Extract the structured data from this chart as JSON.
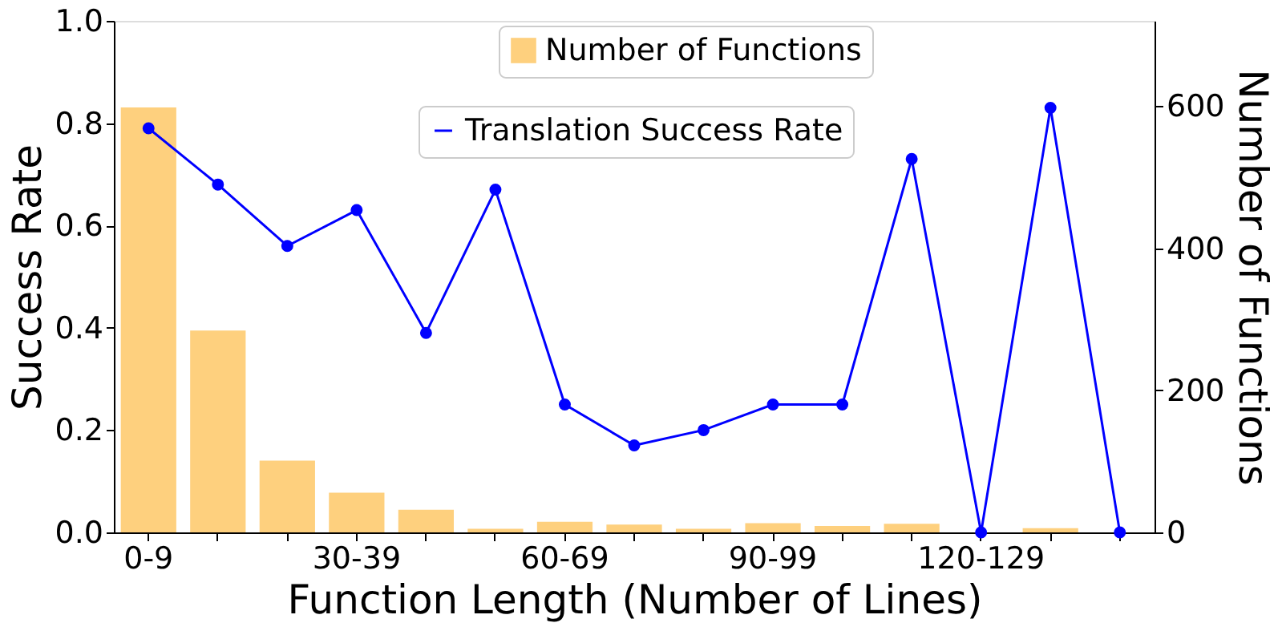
{
  "chart_data": {
    "type": "bar",
    "xlabel": "Function Length (Number of Lines)",
    "ylabel": "Success Rate",
    "y2label": "Number of Functions",
    "categories": [
      "0-9",
      null,
      null,
      "30-39",
      null,
      null,
      "60-69",
      null,
      null,
      "90-99",
      null,
      null,
      "120-129",
      null,
      null
    ],
    "series": [
      {
        "name": "Number of Functions",
        "axis": "y2",
        "color": "#fed07e",
        "values": [
          598,
          284,
          101,
          56,
          32,
          5,
          15,
          11,
          5,
          13,
          9,
          12,
          null,
          6,
          null
        ]
      },
      {
        "name": "Translation Success Rate",
        "type": "line",
        "color": "#0000ff",
        "marker": "circle",
        "values": [
          0.79,
          0.68,
          0.56,
          0.63,
          0.39,
          0.67,
          0.25,
          0.17,
          0.2,
          0.25,
          0.25,
          0.73,
          0.0,
          0.83,
          0.0
        ]
      }
    ],
    "ylim": [
      0,
      1
    ],
    "yticks": [
      {
        "value": 0,
        "label": "0.0"
      },
      {
        "value": 0.2,
        "label": "0.2"
      },
      {
        "value": 0.4,
        "label": "0.4"
      },
      {
        "value": 0.6,
        "label": "0.6"
      },
      {
        "value": 0.8,
        "label": "0.8"
      },
      {
        "value": 1,
        "label": "1.0"
      }
    ],
    "y2lim": [
      0,
      720
    ],
    "y2ticks": [
      0,
      200,
      400,
      600
    ],
    "grid": false,
    "legend": "top right"
  }
}
